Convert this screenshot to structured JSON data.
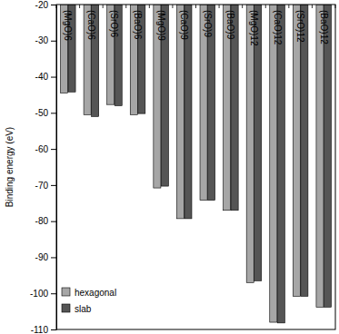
{
  "chart_data": {
    "type": "bar",
    "y_label": "Binding energy (eV)",
    "categories": [
      "(MgO)6",
      "(CaO)6",
      "(SrO)6",
      "(BaO)6",
      "(MgO)9",
      "(CaO)9",
      "(SrO)9",
      "(BaO)9",
      "(MgO)12",
      "(CaO)12",
      "(SrO)12",
      "(BaO)12"
    ],
    "series": [
      {
        "name": "hexagonal",
        "color": "#a6a6a6",
        "values": [
          -44.5,
          -50.5,
          -47.7,
          -50.5,
          -70.8,
          -79.3,
          -74.2,
          -77.0,
          -97.0,
          -108.0,
          -100.8,
          -103.8
        ]
      },
      {
        "name": "slab",
        "color": "#555555",
        "values": [
          -44.2,
          -51.0,
          -48.0,
          -50.2,
          -70.3,
          -79.3,
          -74.2,
          -77.0,
          -96.5,
          -108.2,
          -100.8,
          -103.8
        ]
      }
    ],
    "ylim": [
      -110,
      -20
    ],
    "yticks": [
      -20,
      -30,
      -40,
      -50,
      -60,
      -70,
      -80,
      -90,
      -100,
      -110
    ],
    "grid": false,
    "legend": "lower left"
  }
}
